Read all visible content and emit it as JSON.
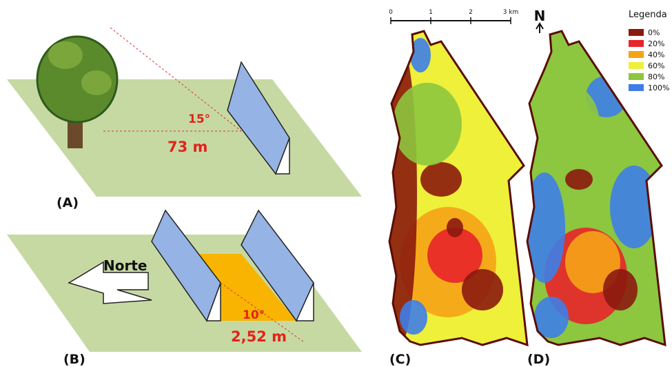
{
  "panel_a": {
    "label": "(A)",
    "angle": "15°",
    "distance": "73 m"
  },
  "panel_b": {
    "label": "(B)",
    "direction": "Norte",
    "angle": "10°",
    "distance": "2,52 m"
  },
  "maps": {
    "scale_ticks": [
      "0",
      "1",
      "2",
      "3 km"
    ],
    "north": "N",
    "panels": [
      "(C)",
      "(D)"
    ]
  },
  "legend": {
    "title": "Legenda",
    "items": [
      {
        "label": "0%",
        "color": "#8b1a0e"
      },
      {
        "label": "20%",
        "color": "#e8232a"
      },
      {
        "label": "40%",
        "color": "#f5a316"
      },
      {
        "label": "60%",
        "color": "#eef03a"
      },
      {
        "label": "80%",
        "color": "#8dc63f"
      },
      {
        "label": "100%",
        "color": "#3d7ee8"
      }
    ]
  }
}
